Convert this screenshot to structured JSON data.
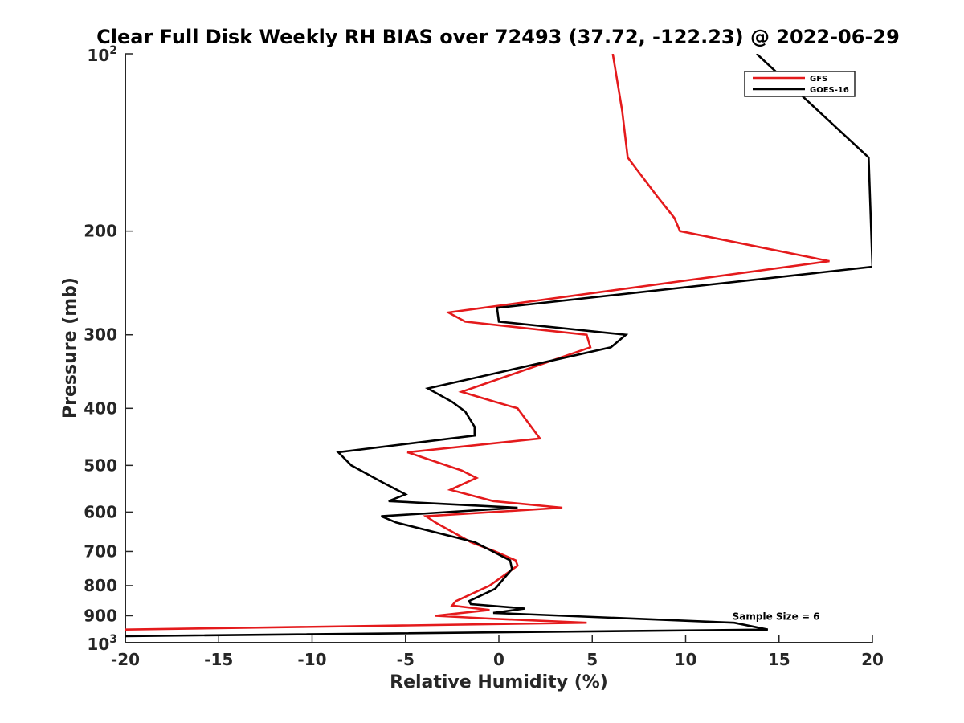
{
  "chart_data": {
    "type": "line",
    "title": "Clear Full Disk Weekly RH BIAS over 72493 (37.72, -122.23) @ 2022-06-29",
    "xlabel": "Relative Humidity (%)",
    "ylabel": "Pressure (mb)",
    "xlim": [
      -20,
      20
    ],
    "ylim": [
      100,
      1000
    ],
    "y_scale": "log",
    "y_reversed": true,
    "grid": false,
    "legend_position": "top-right",
    "x_ticks": [
      "-20",
      "-15",
      "-10",
      "-5",
      "0",
      "5",
      "10",
      "15",
      "20"
    ],
    "y_ticks": [
      {
        "value": 100,
        "base": "10",
        "exp": "2"
      },
      {
        "value": 200,
        "label": "200"
      },
      {
        "value": 300,
        "label": "300"
      },
      {
        "value": 400,
        "label": "400"
      },
      {
        "value": 500,
        "label": "500"
      },
      {
        "value": 600,
        "label": "600"
      },
      {
        "value": 700,
        "label": "700"
      },
      {
        "value": 800,
        "label": "800"
      },
      {
        "value": 900,
        "label": "900"
      },
      {
        "value": 1000,
        "base": "10",
        "exp": "3"
      }
    ],
    "series": [
      {
        "name": "GFS",
        "color": "#e41a1c",
        "points": [
          [
            6.1,
            100
          ],
          [
            6.6,
            125
          ],
          [
            6.9,
            150
          ],
          [
            8.5,
            175
          ],
          [
            9.4,
            190
          ],
          [
            9.7,
            200
          ],
          [
            17.7,
            225
          ],
          [
            -2.7,
            275
          ],
          [
            -1.8,
            285
          ],
          [
            4.7,
            300
          ],
          [
            4.9,
            315
          ],
          [
            -2.0,
            375
          ],
          [
            -0.2,
            390
          ],
          [
            1.0,
            400
          ],
          [
            2.2,
            450
          ],
          [
            -4.9,
            475
          ],
          [
            -2.0,
            510
          ],
          [
            -1.2,
            525
          ],
          [
            -2.6,
            550
          ],
          [
            -0.3,
            575
          ],
          [
            3.4,
            590
          ],
          [
            -3.9,
            610
          ],
          [
            -3.4,
            625
          ],
          [
            -1.5,
            675
          ],
          [
            -0.2,
            700
          ],
          [
            0.9,
            725
          ],
          [
            1.0,
            740
          ],
          [
            0.5,
            760
          ],
          [
            -0.5,
            800
          ],
          [
            -2.3,
            850
          ],
          [
            -2.5,
            865
          ],
          [
            -0.5,
            880
          ],
          [
            -3.4,
            900
          ],
          [
            -0.5,
            910
          ],
          [
            4.7,
            925
          ],
          [
            -20.0,
            950
          ]
        ]
      },
      {
        "name": "GOES-16",
        "color": "#000000",
        "points": [
          [
            13.8,
            100
          ],
          [
            19.8,
            150
          ],
          [
            20.0,
            230
          ],
          [
            -0.1,
            270
          ],
          [
            0.0,
            285
          ],
          [
            6.8,
            300
          ],
          [
            6.0,
            315
          ],
          [
            -3.8,
            370
          ],
          [
            -2.5,
            390
          ],
          [
            -1.8,
            405
          ],
          [
            -1.3,
            430
          ],
          [
            -1.3,
            445
          ],
          [
            -8.6,
            475
          ],
          [
            -7.9,
            500
          ],
          [
            -6.2,
            535
          ],
          [
            -5.0,
            560
          ],
          [
            -5.9,
            575
          ],
          [
            1.0,
            590
          ],
          [
            -6.3,
            610
          ],
          [
            -5.5,
            625
          ],
          [
            -1.3,
            675
          ],
          [
            0.6,
            725
          ],
          [
            0.7,
            750
          ],
          [
            -0.2,
            810
          ],
          [
            -1.6,
            850
          ],
          [
            -1.5,
            860
          ],
          [
            1.4,
            875
          ],
          [
            -0.3,
            890
          ],
          [
            12.6,
            925
          ],
          [
            14.4,
            950
          ],
          [
            -20.0,
            975
          ]
        ]
      }
    ],
    "annotations": [
      {
        "text": "Sample Size = 6",
        "x": 12.5,
        "y": 900
      }
    ]
  },
  "legend": {
    "items": [
      {
        "label": "GFS",
        "color": "#e41a1c"
      },
      {
        "label": "GOES-16",
        "color": "#000000"
      }
    ]
  }
}
